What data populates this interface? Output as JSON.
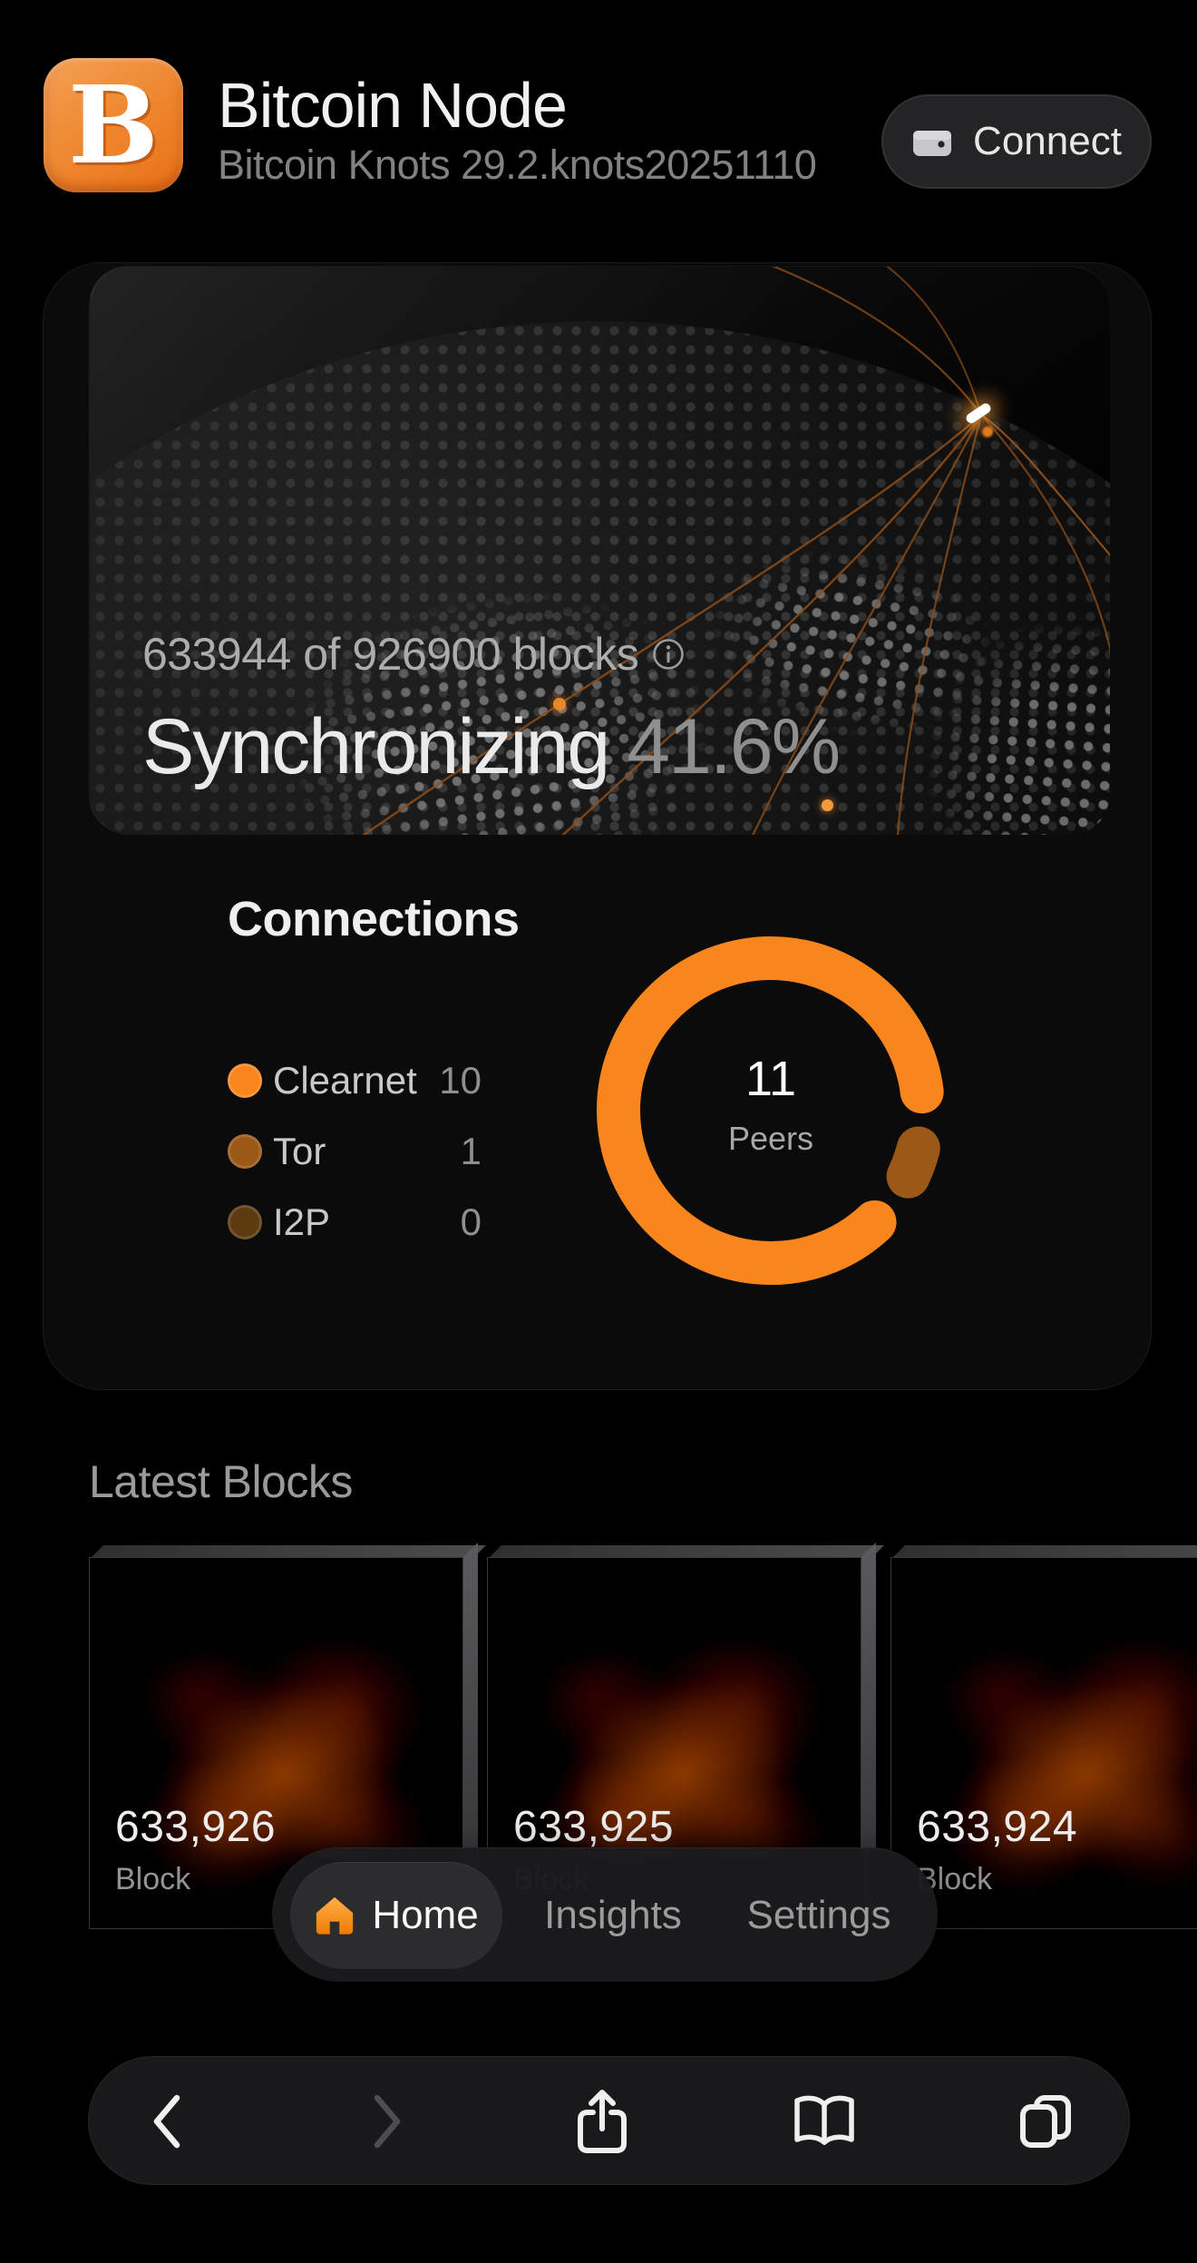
{
  "header": {
    "logo_glyph": "B",
    "title": "Bitcoin Node",
    "subtitle": "Bitcoin Knots 29.2.knots20251110",
    "connect_label": "Connect"
  },
  "sync": {
    "blocks_text": "633944 of 926900 blocks",
    "status_label": "Synchronizing",
    "percent": "41.6%"
  },
  "connections": {
    "title": "Connections",
    "center_value": "11",
    "center_label": "Peers",
    "legend": [
      {
        "label": "Clearnet",
        "value": "10",
        "color": "#F8861D"
      },
      {
        "label": "Tor",
        "value": "1",
        "color": "#9A5917"
      },
      {
        "label": "I2P",
        "value": "0",
        "color": "#5E3A10"
      }
    ]
  },
  "chart_data": {
    "type": "pie",
    "donut": true,
    "title": "Connections",
    "categories": [
      "Clearnet",
      "Tor",
      "I2P"
    ],
    "values": [
      10,
      1,
      0
    ],
    "colors": [
      "#F8861D",
      "#9A5917",
      "#5E3A10"
    ],
    "total_label": "11 Peers",
    "legend_position": "left"
  },
  "latest_blocks": {
    "title": "Latest Blocks",
    "blocks": [
      {
        "height": "633,926",
        "label": "Block"
      },
      {
        "height": "633,925",
        "label": "Block"
      },
      {
        "height": "633,924",
        "label": "Block"
      }
    ]
  },
  "nav": {
    "items": [
      {
        "label": "Home",
        "active": true
      },
      {
        "label": "Insights",
        "active": false
      },
      {
        "label": "Settings",
        "active": false
      }
    ]
  },
  "browser_toolbar": {
    "icons": [
      "back-icon",
      "forward-icon",
      "share-icon",
      "book-icon",
      "tabs-icon"
    ]
  },
  "colors": {
    "accent_orange": "#F8861D",
    "house_icon": "#F78E1E",
    "background": "#000000",
    "card": "#0B0B0C"
  }
}
